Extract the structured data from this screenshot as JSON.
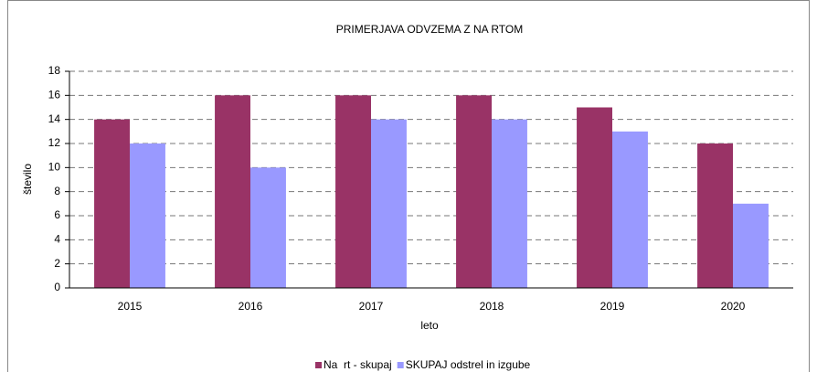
{
  "chart_data": {
    "type": "bar",
    "title": "PRIMERJAVA ODVZEMA Z NA  RTOM",
    "x_label": "leto",
    "y_label": "število",
    "categories": [
      "2015",
      "2016",
      "2017",
      "2018",
      "2019",
      "2020"
    ],
    "series": [
      {
        "name": "Na  rt - skupaj",
        "color": "#993366",
        "values": [
          14,
          16,
          16,
          16,
          15,
          12
        ]
      },
      {
        "name": "SKUPAJ odstrel in izgube",
        "color": "#9999ff",
        "values": [
          12,
          10,
          14,
          14,
          13,
          7
        ]
      }
    ],
    "ylim": [
      0,
      18
    ],
    "yticks": [
      0,
      2,
      4,
      6,
      8,
      10,
      12,
      14,
      16,
      18
    ],
    "grid": true,
    "legend": "bottom"
  }
}
